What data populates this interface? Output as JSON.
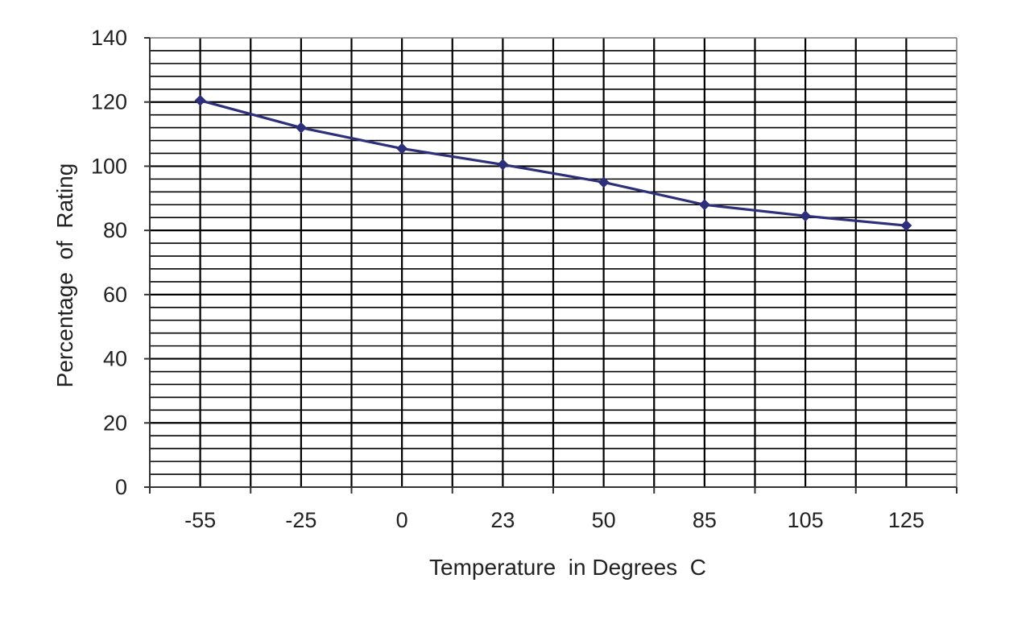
{
  "chart_data": {
    "type": "line",
    "title": "",
    "xlabel": "Temperature  in Degrees  C",
    "ylabel": "Percentage  of  Rating",
    "categories": [
      "-55",
      "-25",
      "0",
      "23",
      "50",
      "85",
      "105",
      "125"
    ],
    "series": [
      {
        "values": [
          120.5,
          112,
          105.5,
          100.5,
          95,
          88,
          84.5,
          81.5
        ]
      }
    ],
    "ylim": [
      0,
      140
    ],
    "yticks": [
      0,
      20,
      40,
      60,
      80,
      100,
      120,
      140
    ],
    "y_minor_step": 4,
    "grid": true,
    "legend": "none",
    "colors": {
      "line": "#2e2f7a",
      "marker": "#2e2f7a",
      "grid": "#000000",
      "axis": "#333333",
      "background": "#ffffff"
    }
  }
}
